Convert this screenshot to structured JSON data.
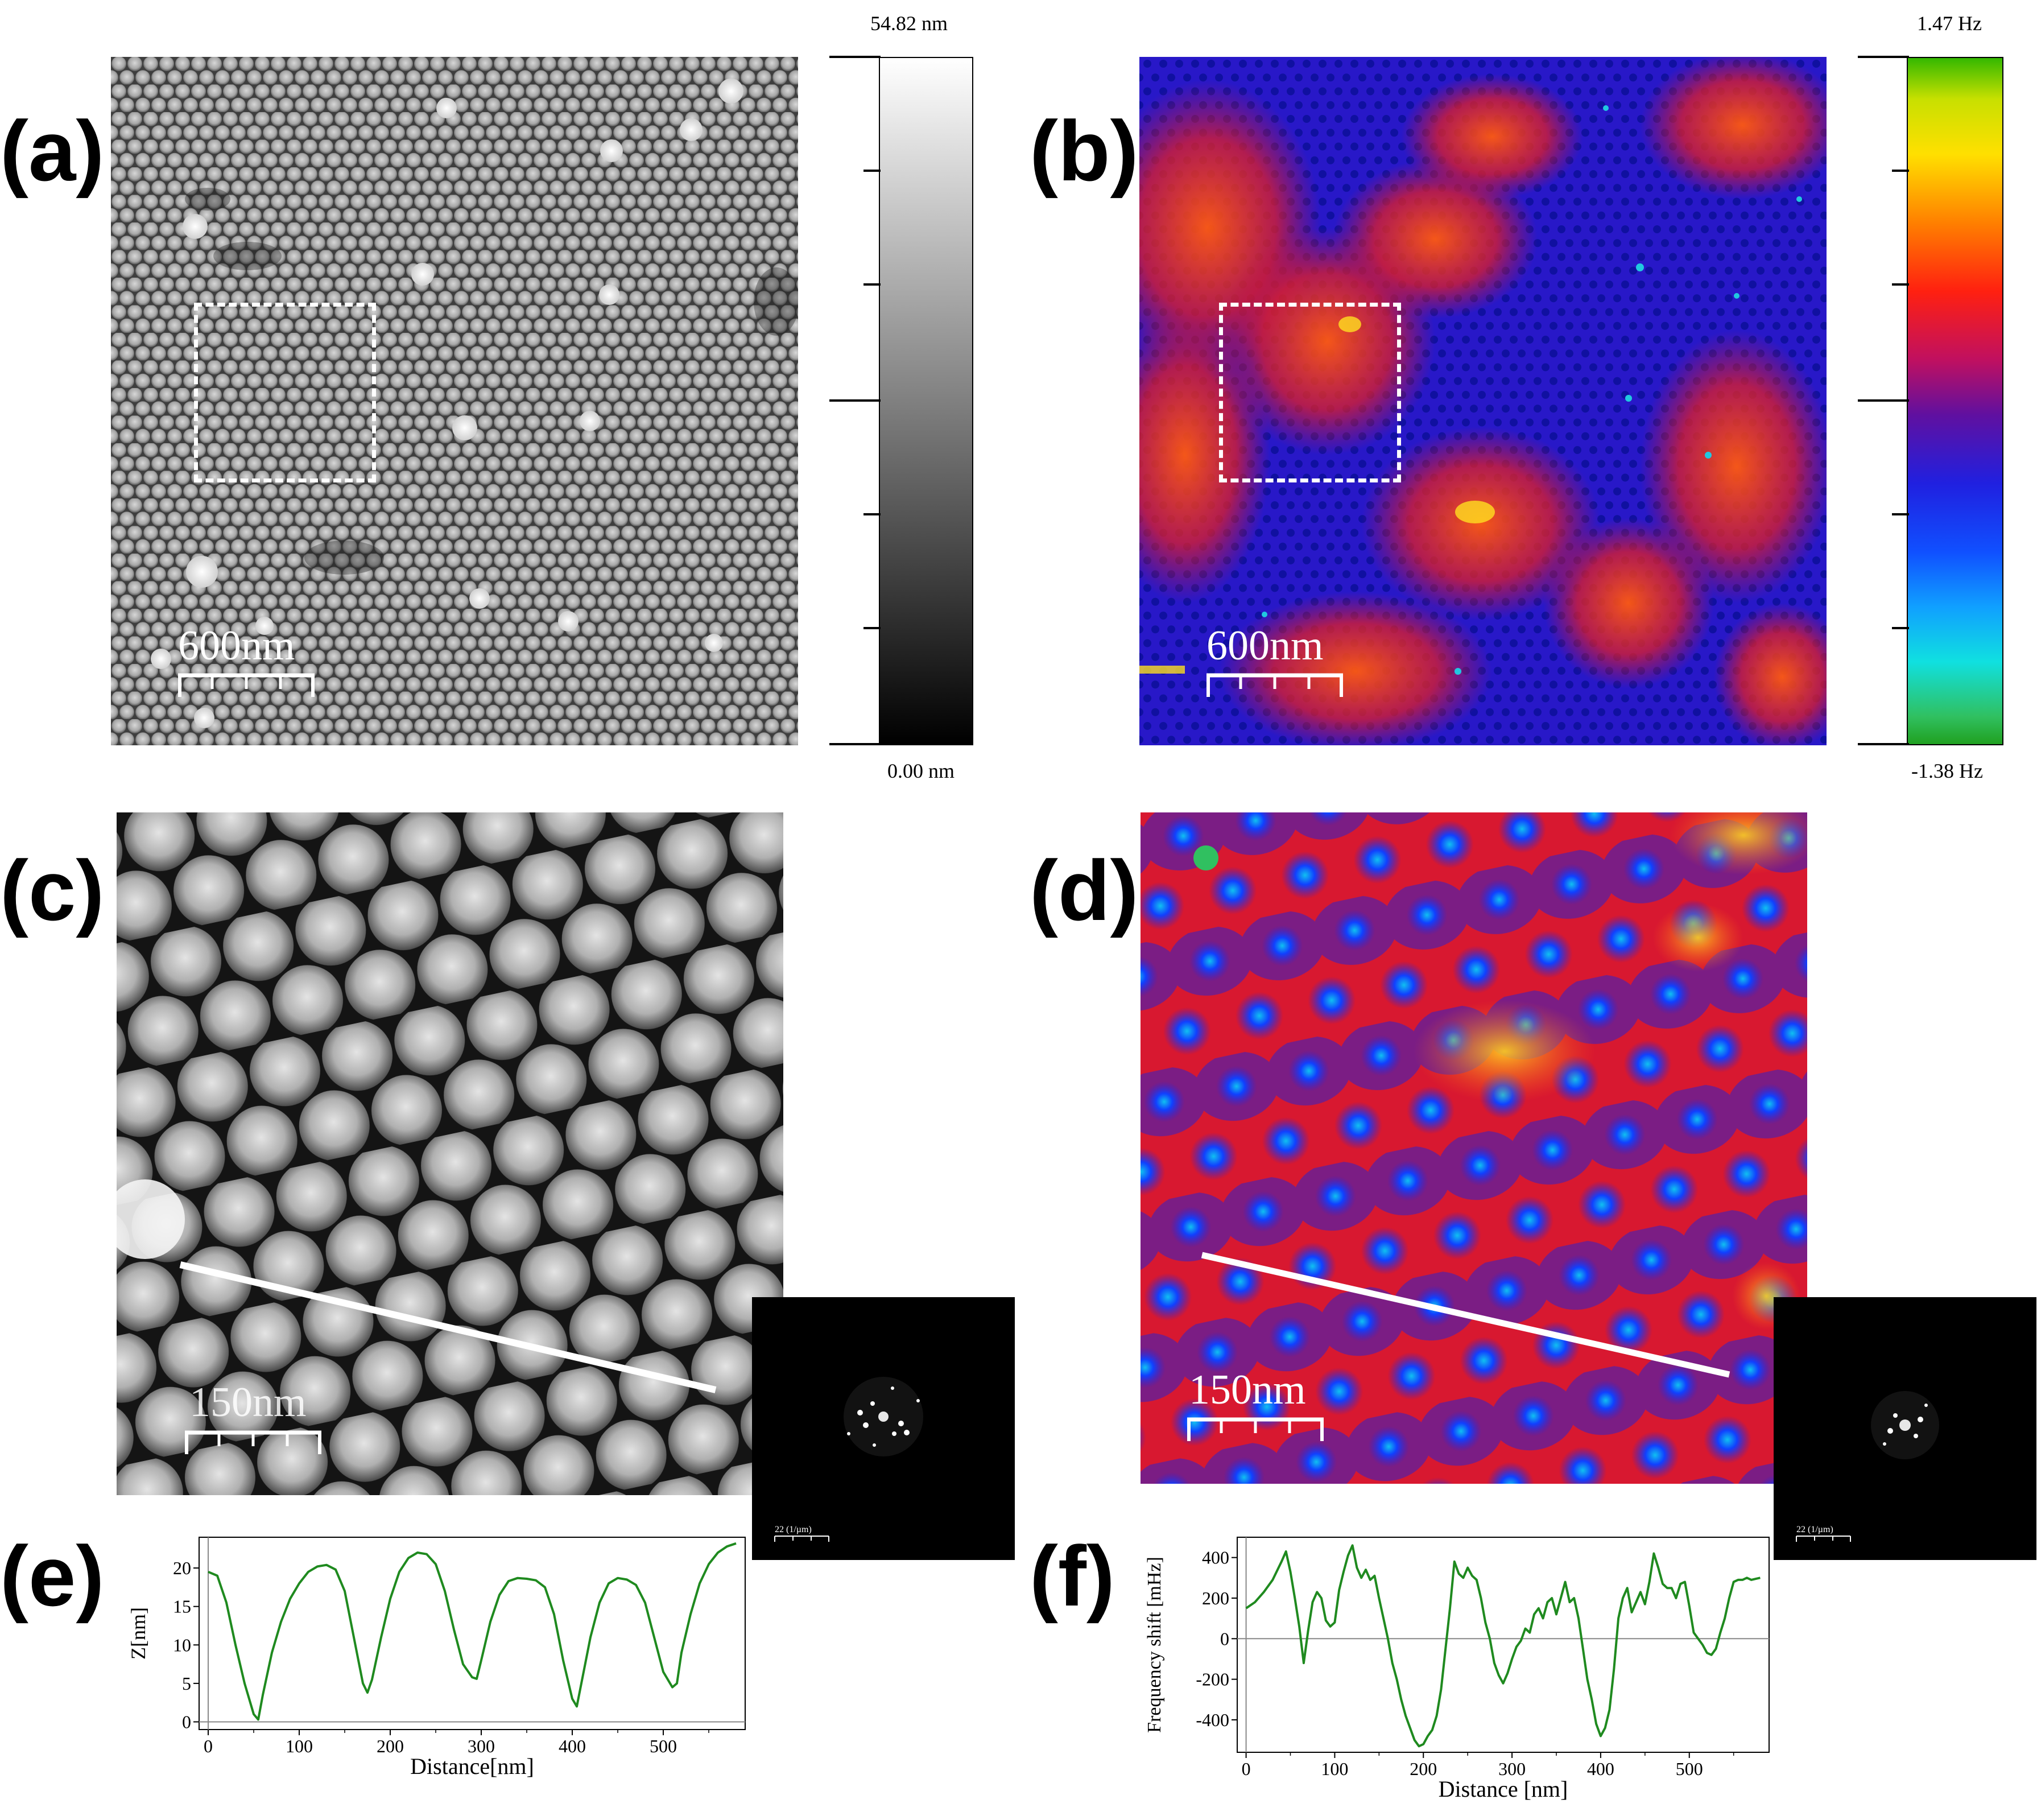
{
  "labels": {
    "a": "(a)",
    "b": "(b)",
    "c": "(c)",
    "d": "(d)",
    "e": "(e)",
    "f": "(f)"
  },
  "scale_bars": {
    "a": "600nm",
    "b": "600nm",
    "c": "150nm",
    "d": "150nm"
  },
  "fft_labels": {
    "c": "22 (1/µm)",
    "d": "22 (1/µm)"
  },
  "colorbar_a": {
    "max": "54.82 nm",
    "min": "0.00 nm"
  },
  "colorbar_b": {
    "max": "1.47 Hz",
    "min": "-1.38 Hz"
  },
  "colors": {
    "profile_line": "#1f8a1f",
    "dashed_box": "#ffffff"
  },
  "chart_data": [
    {
      "id": "e",
      "type": "line",
      "title": "",
      "xlabel": "Distance[nm]",
      "ylabel": "Z[nm]",
      "xlim": [
        -10,
        590
      ],
      "ylim": [
        -1,
        24
      ],
      "xticks": [
        0,
        100,
        200,
        300,
        400,
        500
      ],
      "yticks": [
        0,
        5,
        10,
        15,
        20
      ],
      "hline": 0,
      "x": [
        0,
        10,
        20,
        30,
        40,
        50,
        55,
        60,
        70,
        80,
        90,
        100,
        110,
        120,
        130,
        140,
        150,
        160,
        170,
        175,
        180,
        190,
        200,
        210,
        220,
        230,
        240,
        250,
        260,
        270,
        280,
        290,
        295,
        300,
        310,
        320,
        330,
        340,
        350,
        360,
        370,
        380,
        390,
        400,
        405,
        410,
        420,
        430,
        440,
        450,
        460,
        470,
        480,
        490,
        500,
        510,
        515,
        520,
        530,
        540,
        550,
        560,
        570,
        580
      ],
      "values": [
        19.5,
        19,
        15.5,
        10,
        5,
        1,
        0.3,
        3.5,
        9,
        13,
        16,
        18,
        19.5,
        20.2,
        20.4,
        19.8,
        17,
        11,
        5,
        3.8,
        5.5,
        11,
        16,
        19.5,
        21.3,
        22,
        21.8,
        20.5,
        17,
        12,
        7.5,
        5.8,
        5.6,
        8,
        13,
        16.5,
        18.3,
        18.7,
        18.6,
        18.4,
        17.5,
        14,
        8,
        3,
        2,
        5,
        11,
        15.5,
        18,
        18.7,
        18.5,
        17.8,
        15.5,
        11,
        6.5,
        4.5,
        5,
        9,
        14,
        18,
        20.5,
        22,
        22.8,
        23.2
      ]
    },
    {
      "id": "f",
      "type": "line",
      "title": "",
      "xlabel": "Distance [nm]",
      "ylabel": "Frequency shift [mHz]",
      "xlim": [
        -10,
        590
      ],
      "ylim": [
        -560,
        500
      ],
      "xticks": [
        0,
        100,
        200,
        300,
        400,
        500
      ],
      "yticks": [
        -400,
        -200,
        0,
        200,
        400
      ],
      "hline": 0,
      "x": [
        0,
        10,
        20,
        30,
        40,
        45,
        50,
        55,
        60,
        65,
        70,
        75,
        80,
        85,
        90,
        95,
        100,
        105,
        110,
        115,
        120,
        125,
        130,
        135,
        140,
        145,
        150,
        155,
        160,
        165,
        170,
        175,
        180,
        185,
        190,
        195,
        200,
        205,
        210,
        215,
        220,
        225,
        230,
        235,
        240,
        245,
        250,
        255,
        260,
        265,
        270,
        275,
        280,
        285,
        290,
        295,
        300,
        305,
        310,
        315,
        320,
        325,
        330,
        335,
        340,
        345,
        350,
        355,
        360,
        365,
        370,
        375,
        380,
        385,
        390,
        395,
        400,
        405,
        410,
        415,
        420,
        425,
        430,
        435,
        440,
        445,
        450,
        455,
        460,
        465,
        470,
        475,
        480,
        485,
        490,
        495,
        500,
        505,
        510,
        515,
        520,
        525,
        530,
        535,
        540,
        545,
        550,
        555,
        560,
        565,
        570,
        575,
        580
      ],
      "values": [
        150,
        180,
        230,
        290,
        380,
        430,
        330,
        200,
        60,
        -120,
        40,
        180,
        230,
        200,
        90,
        60,
        80,
        240,
        330,
        410,
        460,
        350,
        300,
        340,
        290,
        310,
        200,
        100,
        0,
        -120,
        -200,
        -300,
        -380,
        -440,
        -500,
        -530,
        -520,
        -480,
        -450,
        -380,
        -250,
        -50,
        150,
        380,
        320,
        300,
        350,
        310,
        290,
        200,
        80,
        0,
        -120,
        -180,
        -220,
        -170,
        -100,
        -40,
        -10,
        50,
        30,
        120,
        150,
        100,
        180,
        200,
        120,
        200,
        280,
        180,
        200,
        100,
        -50,
        -200,
        -300,
        -420,
        -480,
        -440,
        -350,
        -150,
        100,
        200,
        250,
        130,
        180,
        230,
        170,
        280,
        420,
        350,
        270,
        250,
        250,
        200,
        270,
        280,
        160,
        30,
        0,
        -30,
        -70,
        -80,
        -50,
        30,
        100,
        200,
        280,
        290,
        290,
        300,
        290,
        295,
        300
      ]
    }
  ]
}
